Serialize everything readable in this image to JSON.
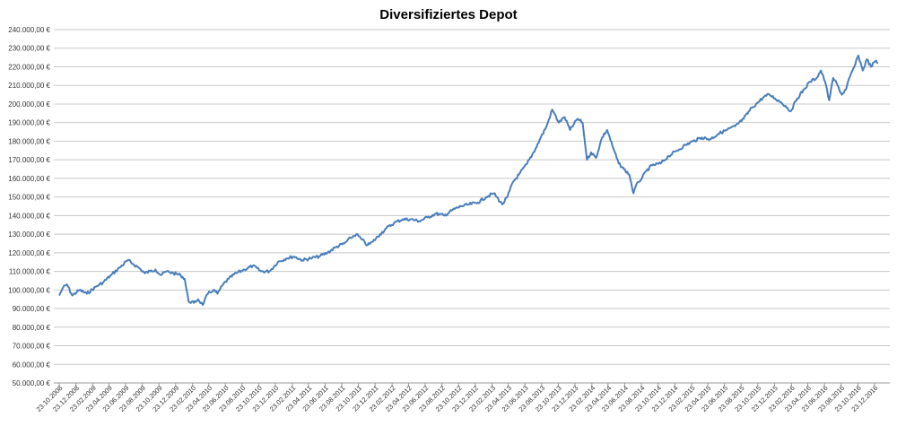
{
  "chart_data": {
    "type": "line",
    "title": "Diversifiziertes Depot",
    "xlabel": "",
    "ylabel": "",
    "ylim": [
      50000,
      240000
    ],
    "y_ticks": [
      "50.000,00 €",
      "60.000,00 €",
      "70.000,00 €",
      "80.000,00 €",
      "90.000,00 €",
      "100.000,00 €",
      "110.000,00 €",
      "120.000,00 €",
      "130.000,00 €",
      "140.000,00 €",
      "150.000,00 €",
      "160.000,00 €",
      "170.000,00 €",
      "180.000,00 €",
      "190.000,00 €",
      "200.000,00 €",
      "210.000,00 €",
      "220.000,00 €",
      "230.000,00 €",
      "240.000,00 €"
    ],
    "y_tick_values": [
      50000,
      60000,
      70000,
      80000,
      90000,
      100000,
      110000,
      120000,
      130000,
      140000,
      150000,
      160000,
      170000,
      180000,
      190000,
      200000,
      210000,
      220000,
      230000,
      240000
    ],
    "x_ticks": [
      "23.10.2008",
      "23.12.2008",
      "23.02.2009",
      "23.04.2009",
      "23.06.2009",
      "23.08.2009",
      "23.10.2009",
      "23.12.2009",
      "23.02.2010",
      "23.04.2010",
      "23.06.2010",
      "23.08.2010",
      "23.10.2010",
      "23.12.2010",
      "23.02.2011",
      "23.04.2011",
      "23.06.2011",
      "23.08.2011",
      "23.10.2011",
      "23.12.2011",
      "23.02.2012",
      "23.04.2012",
      "23.06.2012",
      "23.08.2012",
      "23.10.2012",
      "23.12.2012",
      "23.02.2013",
      "23.04.2013",
      "23.06.2013",
      "23.08.2013",
      "23.10.2013",
      "23.12.2013",
      "23.02.2014",
      "23.04.2014",
      "23.06.2014",
      "23.08.2014",
      "23.10.2014",
      "23.12.2014",
      "23.02.2015",
      "23.04.2015",
      "23.06.2015",
      "23.08.2015",
      "23.10.2015",
      "23.12.2015",
      "23.02.2016",
      "23.04.2016",
      "23.06.2016",
      "23.08.2016",
      "23.10.2016",
      "23.12.2016"
    ],
    "grid": "horizontal",
    "legend": "none",
    "series": [
      {
        "color": "#4a7ebb",
        "x": [
          "2008-10-23",
          "2008-11-05",
          "2008-11-20",
          "2008-12-10",
          "2009-01-05",
          "2009-02-01",
          "2009-03-09",
          "2009-04-01",
          "2009-05-01",
          "2009-06-01",
          "2009-07-01",
          "2009-07-20",
          "2009-08-10",
          "2009-09-01",
          "2009-09-20",
          "2009-10-10",
          "2009-10-30",
          "2009-11-20",
          "2009-12-15",
          "2010-01-10",
          "2010-01-25",
          "2010-02-08",
          "2010-02-28",
          "2010-03-15",
          "2010-04-01",
          "2010-04-20",
          "2010-05-10",
          "2010-05-25",
          "2010-06-15",
          "2010-07-05",
          "2010-08-01",
          "2010-09-01",
          "2010-10-01",
          "2010-11-01",
          "2010-12-01",
          "2011-01-01",
          "2011-02-01",
          "2011-03-01",
          "2011-04-01",
          "2011-05-01",
          "2011-06-01",
          "2011-07-01",
          "2011-08-01",
          "2011-09-01",
          "2011-09-25",
          "2011-10-15",
          "2011-11-05",
          "2011-11-25",
          "2011-12-15",
          "2012-01-10",
          "2012-02-01",
          "2012-03-01",
          "2012-04-01",
          "2012-05-01",
          "2012-06-01",
          "2012-07-01",
          "2012-08-01",
          "2012-09-01",
          "2012-10-01",
          "2012-11-01",
          "2012-12-01",
          "2013-01-01",
          "2013-02-01",
          "2013-03-01",
          "2013-04-01",
          "2013-04-20",
          "2013-05-10",
          "2013-06-01",
          "2013-07-01",
          "2013-08-01",
          "2013-08-20",
          "2013-09-10",
          "2013-10-01",
          "2013-10-25",
          "2013-11-15",
          "2013-12-05",
          "2014-01-01",
          "2014-01-20",
          "2014-02-05",
          "2014-02-20",
          "2014-03-10",
          "2014-04-01",
          "2014-04-20",
          "2014-05-10",
          "2014-06-01",
          "2014-06-20",
          "2014-07-10",
          "2014-07-25",
          "2014-08-10",
          "2014-08-25",
          "2014-09-10",
          "2014-10-01",
          "2014-11-01",
          "2014-12-01",
          "2015-01-01",
          "2015-02-01",
          "2015-03-01",
          "2015-04-01",
          "2015-05-01",
          "2015-06-01",
          "2015-07-01",
          "2015-08-01",
          "2015-09-01",
          "2015-10-01",
          "2015-10-25",
          "2015-11-15",
          "2015-12-05",
          "2015-12-25",
          "2016-01-15",
          "2016-02-01",
          "2016-02-20",
          "2016-03-15",
          "2016-04-10",
          "2016-05-01",
          "2016-05-25",
          "2016-06-10",
          "2016-06-25",
          "2016-07-10",
          "2016-07-25",
          "2016-08-10",
          "2016-08-25",
          "2016-09-10",
          "2016-09-25",
          "2016-10-10",
          "2016-10-25",
          "2016-11-10",
          "2016-11-25",
          "2016-12-10",
          "2016-12-25",
          "2017-01-05"
        ],
        "values": [
          97000,
          101000,
          103000,
          97000,
          100000,
          98000,
          102000,
          104000,
          108000,
          112000,
          116000,
          114000,
          112000,
          109000,
          110000,
          111000,
          108000,
          110000,
          109000,
          108000,
          106000,
          94000,
          93000,
          95000,
          92000,
          98000,
          100000,
          98000,
          103000,
          106000,
          109000,
          111000,
          113000,
          110000,
          110000,
          115000,
          117000,
          118000,
          116000,
          117000,
          118000,
          120000,
          123000,
          125000,
          128000,
          130000,
          127000,
          124000,
          126000,
          130000,
          133000,
          136000,
          138000,
          138000,
          137000,
          139000,
          141000,
          140000,
          143000,
          145000,
          146000,
          147000,
          150000,
          152000,
          146000,
          150000,
          158000,
          162000,
          168000,
          176000,
          182000,
          188000,
          197000,
          190000,
          193000,
          186000,
          192000,
          190000,
          170000,
          174000,
          171000,
          182000,
          186000,
          177000,
          168000,
          165000,
          162000,
          152000,
          158000,
          160000,
          164000,
          167000,
          168000,
          172000,
          175000,
          178000,
          180000,
          182000,
          181000,
          184000,
          186000,
          188000,
          192000,
          198000,
          201000,
          204000,
          205000,
          203000,
          201000,
          199000,
          196000,
          203000,
          208000,
          212000,
          214000,
          218000,
          212000,
          202000,
          214000,
          210000,
          205000,
          208000,
          215000,
          220000,
          226000,
          218000,
          224000,
          220000,
          223000,
          222000
        ]
      }
    ]
  }
}
